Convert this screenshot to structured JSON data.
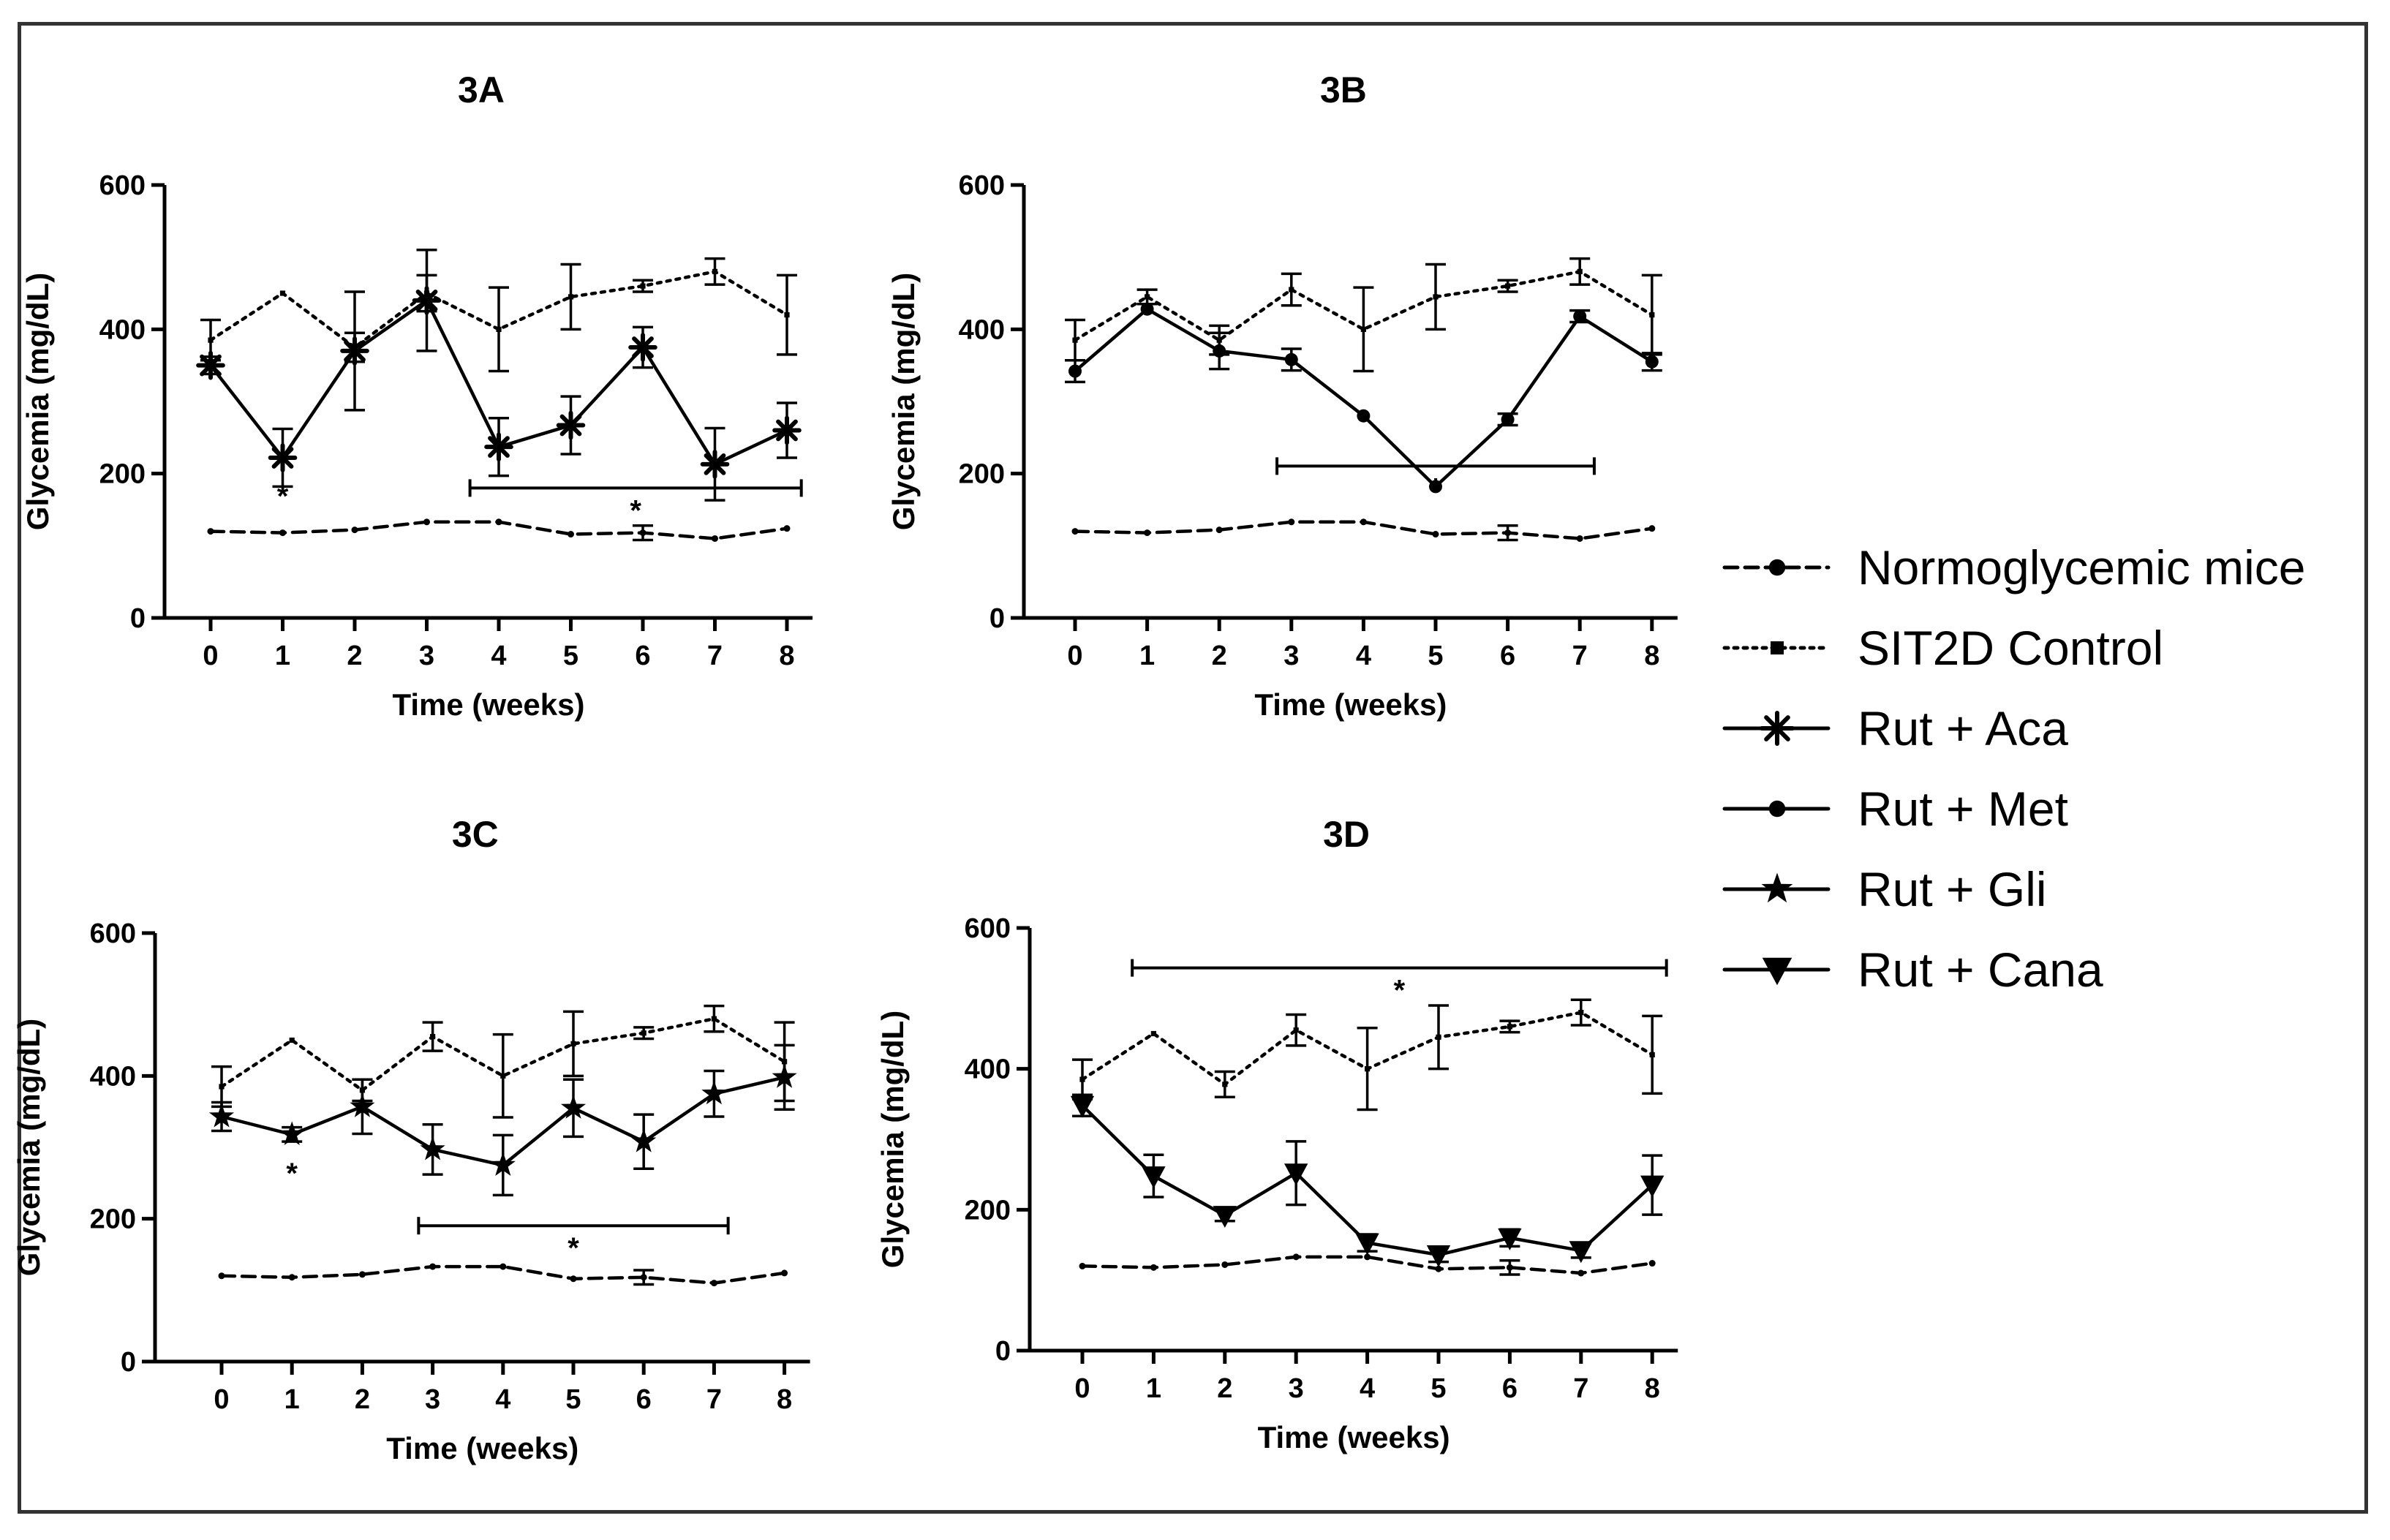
{
  "chart_data": [
    {
      "panel": "3A",
      "type": "line",
      "title": "3A",
      "xlabel": "Time (weeks)",
      "ylabel": "Glycemia (mg/dL)",
      "x": [
        0,
        1,
        2,
        3,
        4,
        5,
        6,
        7,
        8
      ],
      "ylim": [
        0,
        600
      ],
      "yticks": [
        0,
        200,
        400,
        600
      ],
      "series": [
        {
          "name": "Normoglycemic mice",
          "values": [
            120,
            118,
            122,
            133,
            133,
            116,
            118,
            110,
            124
          ],
          "errors": [
            4,
            3,
            3,
            4,
            4,
            4,
            10,
            5,
            4
          ]
        },
        {
          "name": "SIT2D Control",
          "values": [
            385,
            450,
            375,
            450,
            400,
            445,
            460,
            480,
            420
          ],
          "errors": [
            28,
            5,
            20,
            25,
            58,
            45,
            8,
            18,
            55
          ]
        },
        {
          "name": "Rut + Aca",
          "values": [
            350,
            222,
            370,
            440,
            237,
            267,
            375,
            213,
            260
          ],
          "errors": [
            12,
            40,
            82,
            70,
            40,
            40,
            28,
            50,
            38
          ]
        }
      ],
      "annotations": [
        {
          "label": "*",
          "x": 1
        },
        {
          "label": "*",
          "from": 3.6,
          "to": 8.2
        }
      ]
    },
    {
      "panel": "3B",
      "type": "line",
      "title": "3B",
      "xlabel": "Time (weeks)",
      "ylabel": "Glycemia (mg/dL)",
      "x": [
        0,
        1,
        2,
        3,
        4,
        5,
        6,
        7,
        8
      ],
      "ylim": [
        0,
        600
      ],
      "yticks": [
        0,
        200,
        400,
        600
      ],
      "series": [
        {
          "name": "Normoglycemic mice",
          "values": [
            120,
            118,
            122,
            133,
            133,
            116,
            118,
            110,
            124
          ],
          "errors": [
            4,
            3,
            3,
            4,
            4,
            4,
            10,
            5,
            4
          ]
        },
        {
          "name": "SIT2D Control",
          "values": [
            385,
            445,
            385,
            455,
            400,
            445,
            460,
            480,
            420
          ],
          "errors": [
            28,
            10,
            20,
            22,
            58,
            45,
            8,
            18,
            55
          ]
        },
        {
          "name": "Rut + Met",
          "values": [
            342,
            428,
            370,
            358,
            280,
            182,
            275,
            418,
            355
          ],
          "errors": [
            15,
            5,
            25,
            15,
            5,
            5,
            8,
            8,
            12
          ]
        }
      ],
      "annotations": [
        {
          "label": "*",
          "from": 2.8,
          "to": 7.2
        }
      ]
    },
    {
      "panel": "3C",
      "type": "line",
      "title": "3C",
      "xlabel": "Time (weeks)",
      "ylabel": "Glycemia (mg/dL)",
      "x": [
        0,
        1,
        2,
        3,
        4,
        5,
        6,
        7,
        8
      ],
      "ylim": [
        0,
        600
      ],
      "yticks": [
        0,
        200,
        400,
        600
      ],
      "series": [
        {
          "name": "Normoglycemic mice",
          "values": [
            120,
            118,
            122,
            133,
            133,
            116,
            118,
            110,
            124
          ],
          "errors": [
            4,
            3,
            3,
            4,
            4,
            4,
            10,
            5,
            4
          ]
        },
        {
          "name": "SIT2D Control",
          "values": [
            385,
            450,
            380,
            455,
            400,
            445,
            460,
            480,
            420
          ],
          "errors": [
            28,
            5,
            15,
            20,
            58,
            45,
            8,
            18,
            55
          ]
        },
        {
          "name": "Rut + Gli",
          "values": [
            343,
            318,
            357,
            297,
            275,
            355,
            308,
            375,
            398
          ],
          "errors": [
            20,
            10,
            38,
            35,
            42,
            40,
            38,
            32,
            45
          ]
        }
      ],
      "annotations": [
        {
          "label": "*",
          "x": 1
        },
        {
          "label": "*",
          "from": 2.8,
          "to": 7.2
        }
      ]
    },
    {
      "panel": "3D",
      "type": "line",
      "title": "3D",
      "xlabel": "Time (weeks)",
      "ylabel": "Glycemia (mg/dL)",
      "x": [
        0,
        1,
        2,
        3,
        4,
        5,
        6,
        7,
        8
      ],
      "ylim": [
        0,
        600
      ],
      "yticks": [
        0,
        200,
        400,
        600
      ],
      "series": [
        {
          "name": "Normoglycemic mice",
          "values": [
            120,
            118,
            122,
            133,
            133,
            116,
            118,
            110,
            124
          ],
          "errors": [
            4,
            3,
            3,
            4,
            4,
            4,
            10,
            5,
            4
          ]
        },
        {
          "name": "SIT2D Control",
          "values": [
            385,
            450,
            378,
            455,
            400,
            445,
            460,
            480,
            420
          ],
          "errors": [
            28,
            5,
            18,
            22,
            58,
            45,
            8,
            18,
            55
          ]
        },
        {
          "name": "Rut + Cana",
          "values": [
            348,
            248,
            192,
            252,
            153,
            136,
            160,
            142,
            235
          ],
          "errors": [
            15,
            30,
            8,
            45,
            12,
            10,
            12,
            10,
            42
          ]
        }
      ],
      "annotations": [
        {
          "label": "*",
          "from": 0.7,
          "to": 8.2
        }
      ]
    }
  ],
  "legend": [
    {
      "label": "Normoglycemic mice",
      "line": "dashed",
      "marker": "circle"
    },
    {
      "label": "SIT2D Control",
      "line": "dotted",
      "marker": "square"
    },
    {
      "label": "Rut + Aca",
      "line": "solid",
      "marker": "asterisk"
    },
    {
      "label": "Rut + Met",
      "line": "solid",
      "marker": "circle"
    },
    {
      "label": "Rut + Gli",
      "line": "solid",
      "marker": "star"
    },
    {
      "label": "Rut + Cana",
      "line": "solid",
      "marker": "triangle-down"
    }
  ]
}
